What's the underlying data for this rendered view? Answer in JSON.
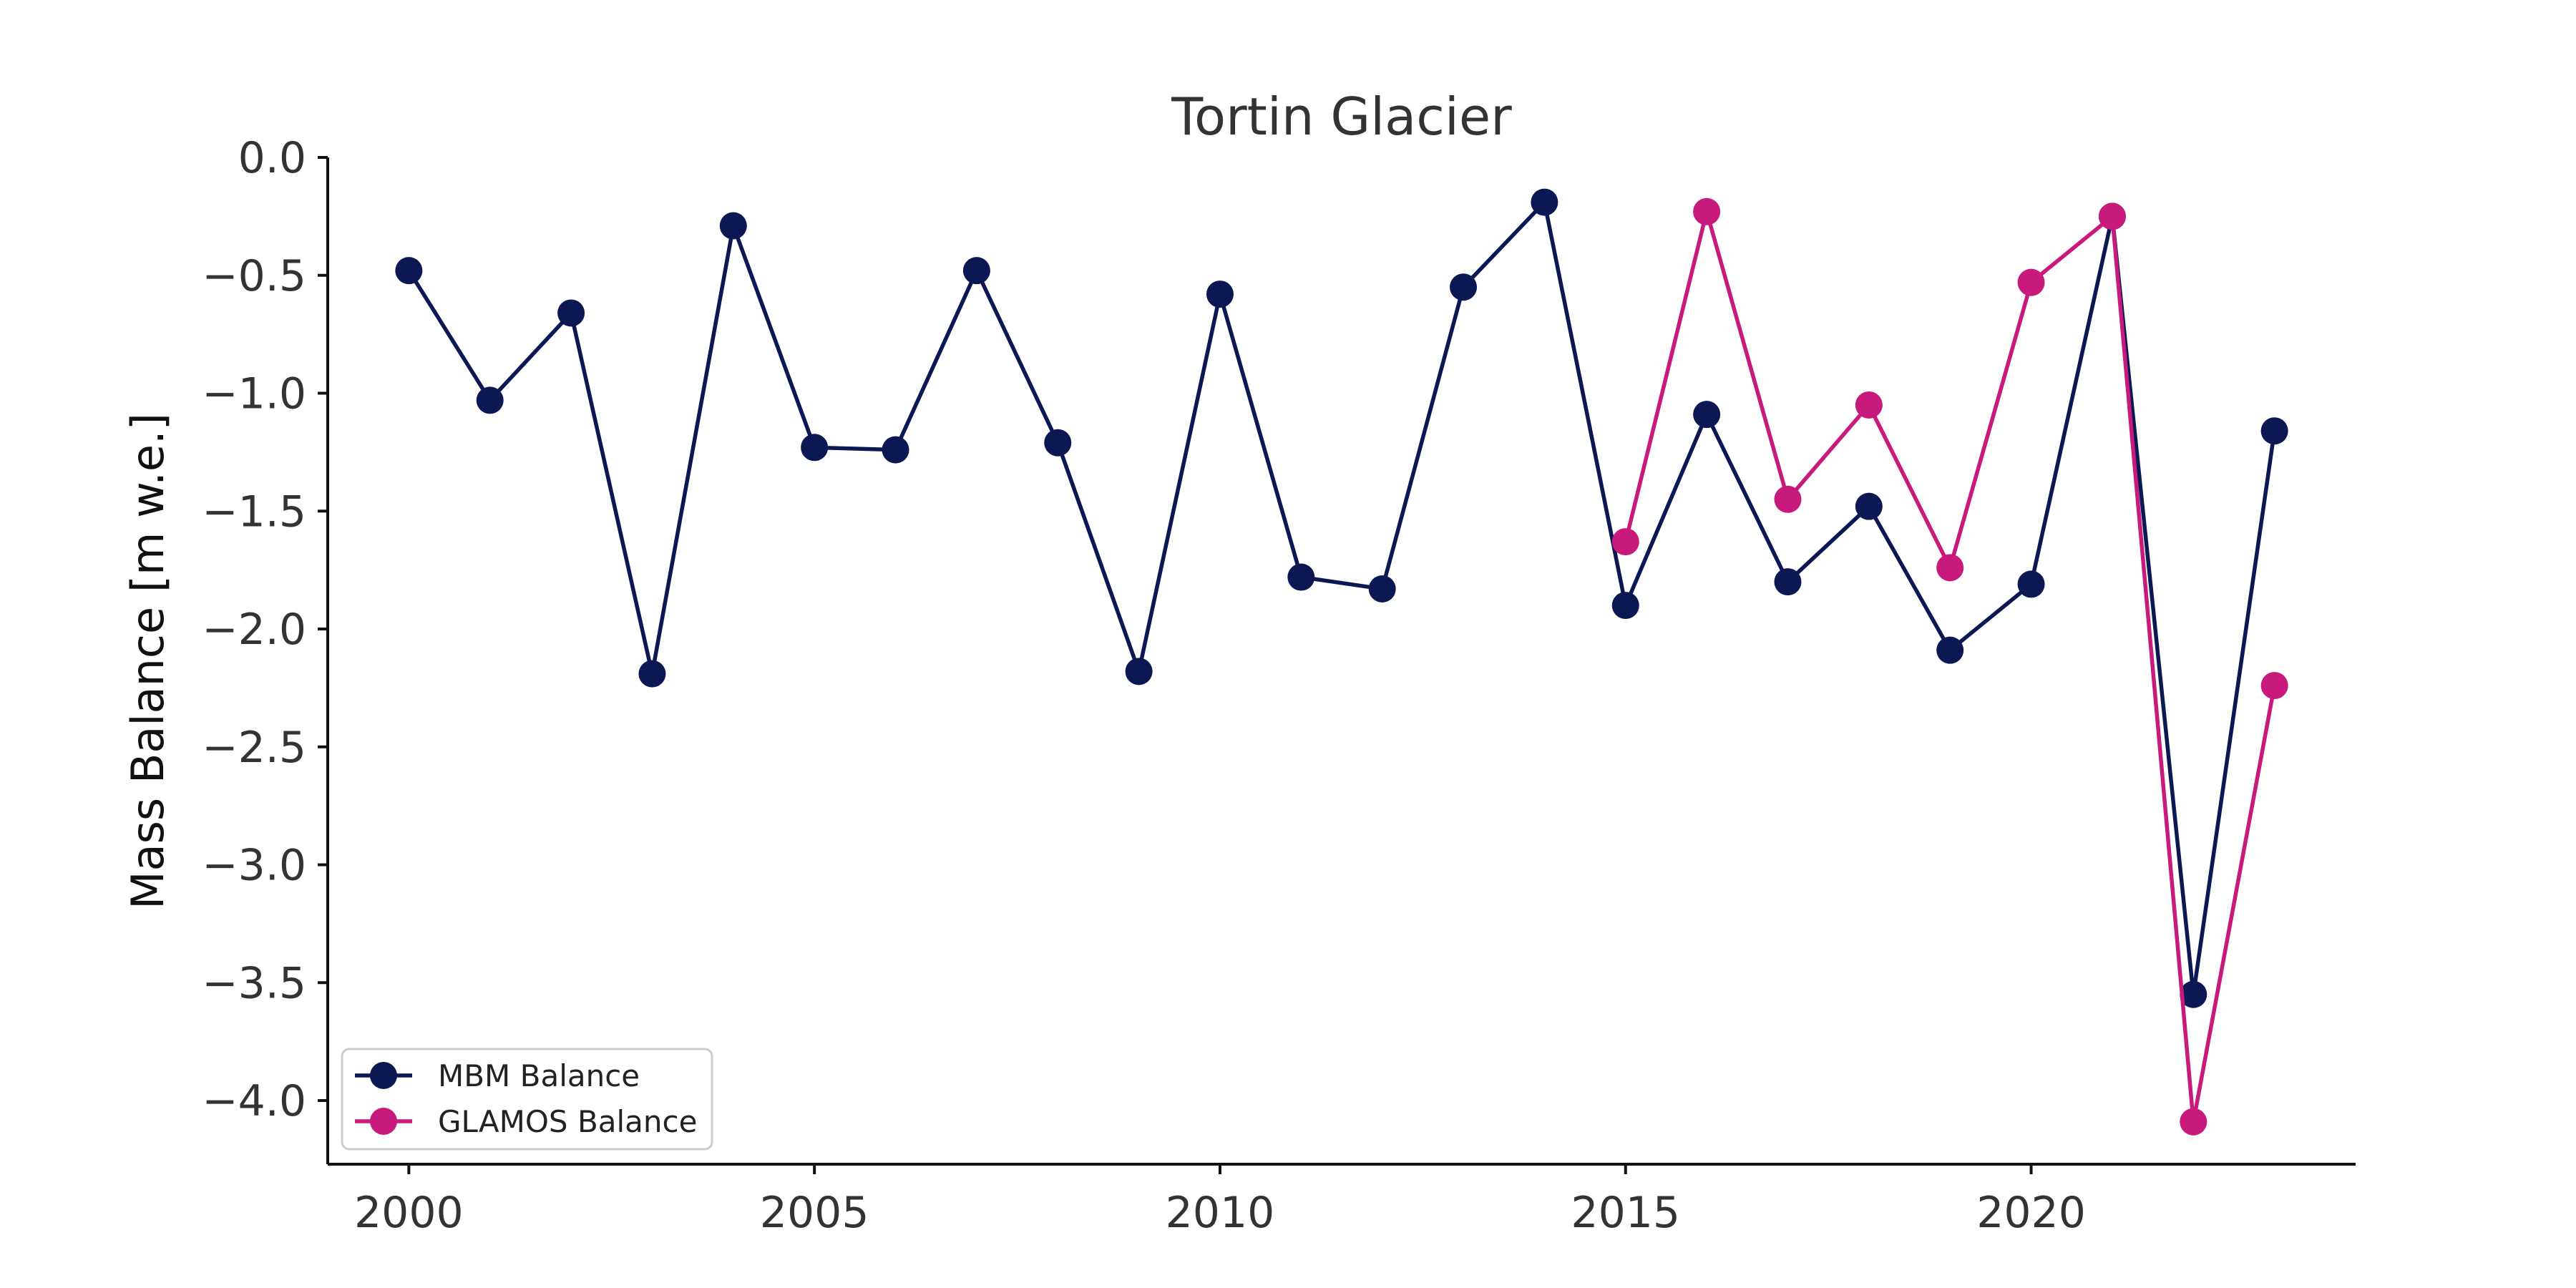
{
  "chart_data": {
    "type": "line",
    "title": "Tortin Glacier",
    "xlabel": "",
    "ylabel": "Mass Balance [m w.e.]",
    "xlim": [
      1999,
      2024
    ],
    "ylim": [
      -4.27,
      0.0
    ],
    "x_ticks": [
      2000,
      2005,
      2010,
      2015,
      2020
    ],
    "y_ticks": [
      0.0,
      -0.5,
      -1.0,
      -1.5,
      -2.0,
      -2.5,
      -3.0,
      -3.5,
      -4.0
    ],
    "y_tick_labels": [
      "0.0",
      "−0.5",
      "−1.0",
      "−1.5",
      "−2.0",
      "−2.5",
      "−3.0",
      "−3.5",
      "−4.0"
    ],
    "grid": false,
    "legend_position": "lower-left",
    "series": [
      {
        "name": "MBM Balance",
        "color": "#0b1854",
        "x": [
          2000,
          2001,
          2002,
          2003,
          2004,
          2005,
          2006,
          2007,
          2008,
          2009,
          2010,
          2011,
          2012,
          2013,
          2014,
          2015,
          2016,
          2017,
          2018,
          2019,
          2020,
          2021,
          2022,
          2023
        ],
        "y": [
          -0.48,
          -1.03,
          -0.66,
          -2.19,
          -0.29,
          -1.23,
          -1.24,
          -0.48,
          -1.21,
          -2.18,
          -0.58,
          -1.78,
          -1.83,
          -0.55,
          -0.19,
          -1.9,
          -1.09,
          -1.8,
          -1.48,
          -2.09,
          -1.81,
          -0.25,
          -3.55,
          -1.16
        ]
      },
      {
        "name": "GLAMOS Balance",
        "color": "#c8197d",
        "x": [
          2015,
          2016,
          2017,
          2018,
          2019,
          2020,
          2021,
          2022,
          2023
        ],
        "y": [
          -1.63,
          -0.23,
          -1.45,
          -1.05,
          -1.74,
          -0.53,
          -0.25,
          -4.09,
          -2.24
        ]
      }
    ]
  }
}
